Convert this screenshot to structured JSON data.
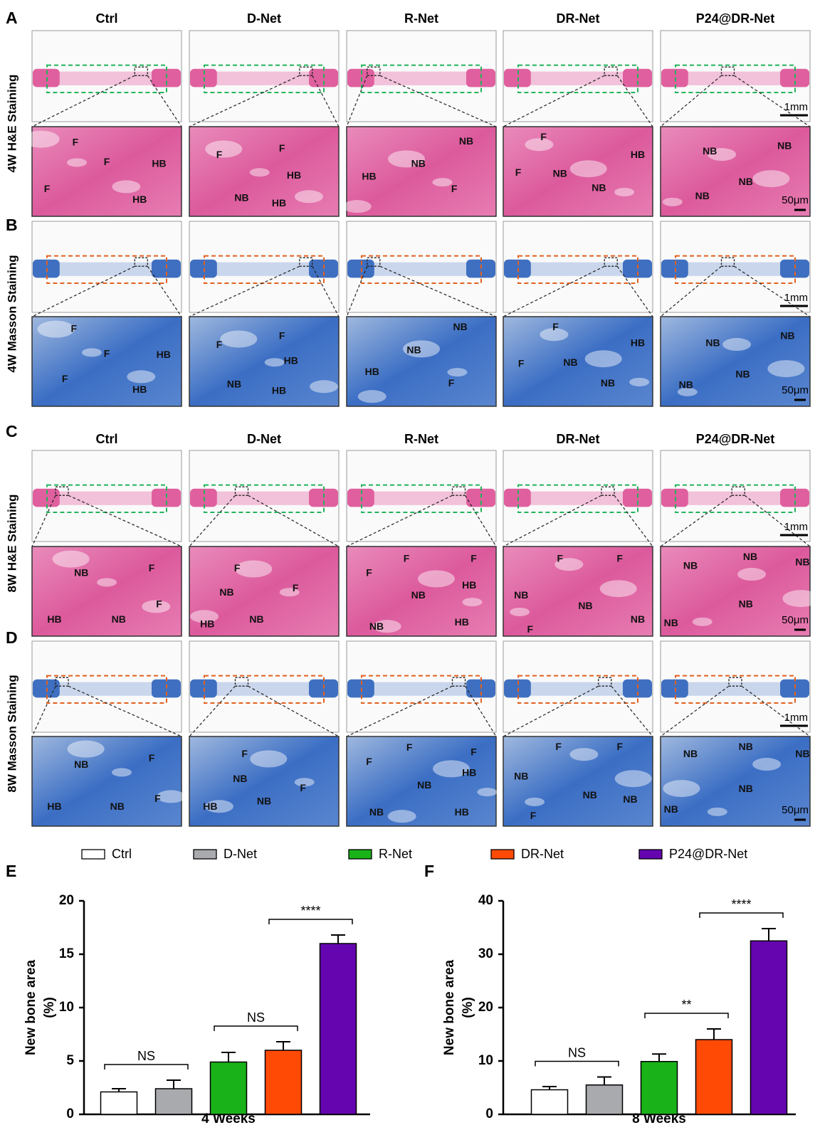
{
  "figure": {
    "panel_letters": [
      "A",
      "B",
      "C",
      "D",
      "E",
      "F"
    ],
    "column_headers_top": [
      "Ctrl",
      "D-Net",
      "R-Net",
      "DR-Net",
      "P24@DR-Net"
    ],
    "column_headers_bottom": [
      "Ctrl",
      "D-Net",
      "R-Net",
      "DR-Net",
      "P24@DR-Net"
    ],
    "rows": [
      {
        "label": "4W H&E Staining",
        "overview_scale": "1mm",
        "zoom_scale": "50μm",
        "zoom_labels": [
          [
            "F",
            "F",
            "F",
            "HB",
            "HB"
          ],
          [
            "F",
            "F",
            "HB",
            "NB",
            "HB"
          ],
          [
            "NB",
            "NB",
            "HB",
            "F"
          ],
          [
            "F",
            "HB",
            "NB",
            "NB",
            "F"
          ],
          [
            "NB",
            "NB",
            "NB",
            "NB"
          ]
        ]
      },
      {
        "label": "4W Masson Staining",
        "overview_scale": "1mm",
        "zoom_scale": "50μm",
        "zoom_labels": [
          [
            "F",
            "F",
            "F",
            "HB",
            "HB"
          ],
          [
            "F",
            "F",
            "HB",
            "NB",
            "HB"
          ],
          [
            "NB",
            "NB",
            "HB",
            "F"
          ],
          [
            "F",
            "HB",
            "NB",
            "NB",
            "F"
          ],
          [
            "NB",
            "NB",
            "NB",
            "NB"
          ]
        ]
      },
      {
        "label": "8W H&E Staining",
        "overview_scale": "1mm",
        "zoom_scale": "50μm",
        "zoom_labels": [
          [
            "NB",
            "F",
            "F",
            "HB",
            "NB"
          ],
          [
            "F",
            "NB",
            "F",
            "HB",
            "NB"
          ],
          [
            "F",
            "F",
            "F",
            "HB",
            "NB",
            "NB",
            "HB"
          ],
          [
            "F",
            "F",
            "NB",
            "NB",
            "NB",
            "F"
          ],
          [
            "NB",
            "NB",
            "NB",
            "NB",
            "NB"
          ]
        ]
      },
      {
        "label": "8W Masson Staining",
        "overview_scale": "1mm",
        "zoom_scale": "50μm",
        "zoom_labels": [
          [
            "NB",
            "F",
            "F",
            "HB",
            "NB"
          ],
          [
            "F",
            "NB",
            "F",
            "HB",
            "NB"
          ],
          [
            "F",
            "F",
            "F",
            "HB",
            "NB",
            "NB",
            "HB"
          ],
          [
            "F",
            "F",
            "NB",
            "NB",
            "NB",
            "F"
          ],
          [
            "NB",
            "NB",
            "NB",
            "NB",
            "NB"
          ]
        ]
      }
    ]
  },
  "chart_data": [
    {
      "type": "bar",
      "xlabel": "4 Weeks",
      "ylabel": "New bone area",
      "ylabel_unit": "(%)",
      "categories": [
        "Ctrl",
        "D-Net",
        "R-Net",
        "DR-Net",
        "P24@DR-Net"
      ],
      "colors": [
        "#ffffff",
        "#a9aaae",
        "#19b219",
        "#ff4a06",
        "#6505b0"
      ],
      "values": [
        2.1,
        2.4,
        4.9,
        6.0,
        16.0
      ],
      "errors": [
        0.3,
        0.8,
        0.9,
        0.8,
        0.8
      ],
      "ylim": [
        0,
        20
      ],
      "yticks": [
        0,
        5,
        10,
        15,
        20
      ],
      "annotations": [
        {
          "text": "NS",
          "from": 0,
          "to": 1
        },
        {
          "text": "NS",
          "from": 2,
          "to": 3
        },
        {
          "text": "****",
          "from": 3,
          "to": 4
        }
      ]
    },
    {
      "type": "bar",
      "xlabel": "8 Weeks",
      "ylabel": "New bone area",
      "ylabel_unit": "(%)",
      "categories": [
        "Ctrl",
        "D-Net",
        "R-Net",
        "DR-Net",
        "P24@DR-Net"
      ],
      "colors": [
        "#ffffff",
        "#a9aaae",
        "#19b219",
        "#ff4a06",
        "#6505b0"
      ],
      "values": [
        4.6,
        5.5,
        9.9,
        14.0,
        32.5
      ],
      "errors": [
        0.6,
        1.5,
        1.4,
        2.0,
        2.3
      ],
      "ylim": [
        0,
        40
      ],
      "yticks": [
        0,
        10,
        20,
        30,
        40
      ],
      "annotations": [
        {
          "text": "NS",
          "from": 0,
          "to": 1
        },
        {
          "text": "**",
          "from": 2,
          "to": 3
        },
        {
          "text": "****",
          "from": 3,
          "to": 4
        }
      ]
    }
  ]
}
